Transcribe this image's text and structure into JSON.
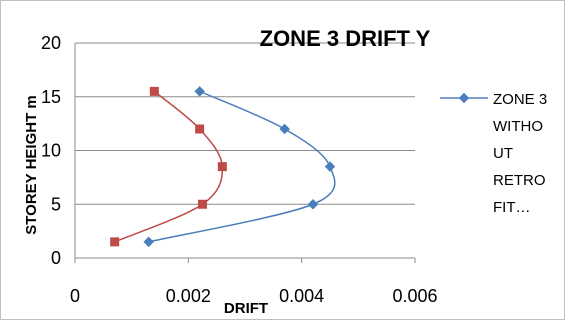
{
  "chart_data": {
    "type": "scatter",
    "title": "ZONE 3 DRIFT Y",
    "xlabel": "DRIFT",
    "ylabel": "STOREY HEIGHT m",
    "xlim": [
      0,
      0.006
    ],
    "ylim": [
      0,
      20
    ],
    "x_ticks": [
      "0",
      "0.002",
      "0.004",
      "0.006"
    ],
    "y_ticks": [
      "0",
      "5",
      "10",
      "15",
      "20"
    ],
    "grid": true,
    "legend_position": "right",
    "series": [
      {
        "name": "ZONE 3 WITHOUT RETROFIT…",
        "legend_lines": [
          "ZONE 3",
          "WITHO",
          "UT",
          "RETRO",
          "FIT…"
        ],
        "color": "#4a7ebb",
        "marker": "diamond",
        "points": [
          [
            0.0013,
            1.5
          ],
          [
            0.0042,
            5
          ],
          [
            0.0045,
            8.5
          ],
          [
            0.0037,
            12
          ],
          [
            0.0022,
            15.5
          ]
        ]
      },
      {
        "color": "#be4b48",
        "marker": "square",
        "points": [
          [
            0.0007,
            1.5
          ],
          [
            0.00225,
            5
          ],
          [
            0.0026,
            8.5
          ],
          [
            0.0022,
            12
          ],
          [
            0.0014,
            15.5
          ]
        ]
      }
    ]
  }
}
